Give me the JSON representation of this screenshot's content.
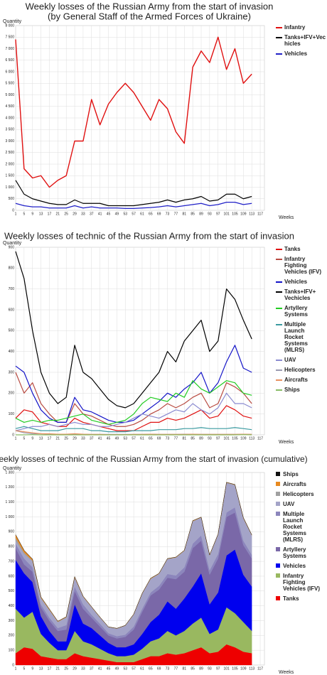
{
  "chart_data": [
    {
      "type": "line",
      "title": "Weekly losses of the Russian Army from the start of invasion",
      "subtitle": "(by General Staff of the Armed Forces of Ukraine)",
      "y_label": "Quantity",
      "x_label": "Weeks",
      "grid": true,
      "legend": "right",
      "x": [
        1,
        5,
        9,
        13,
        17,
        21,
        25,
        29,
        33,
        37,
        41,
        45,
        49,
        53,
        57,
        61,
        65,
        69,
        73,
        77,
        81,
        85,
        89,
        93,
        97,
        101,
        105,
        109,
        113
      ],
      "xlim": [
        1,
        119
      ],
      "xticks": [
        1,
        5,
        9,
        13,
        17,
        21,
        25,
        29,
        33,
        37,
        41,
        45,
        49,
        53,
        57,
        61,
        65,
        69,
        73,
        77,
        81,
        85,
        89,
        93,
        97,
        101,
        105,
        109,
        113,
        117
      ],
      "ylim": [
        0,
        8000
      ],
      "yticks": [
        0,
        500,
        {
          "value": 1000,
          "label": "1 000"
        },
        {
          "value": 1500,
          "label": "1 500"
        },
        {
          "value": 2000,
          "label": "2 000"
        },
        {
          "value": 2500,
          "label": "2 500"
        },
        {
          "value": 3000,
          "label": "3 000"
        },
        {
          "value": 3500,
          "label": "3 500"
        },
        {
          "value": 4000,
          "label": "4 000"
        },
        {
          "value": 4500,
          "label": "4 500"
        },
        {
          "value": 5000,
          "label": "5 000"
        },
        {
          "value": 5500,
          "label": "5 500"
        },
        {
          "value": 6000,
          "label": "6 000"
        },
        {
          "value": 6500,
          "label": "6 500"
        },
        {
          "value": 7000,
          "label": "7 000"
        },
        {
          "value": 7500,
          "label": "7 500"
        },
        {
          "value": 8000,
          "label": "8 000"
        }
      ],
      "series": [
        {
          "name": "Infantry",
          "color": "#e01010",
          "values": [
            7400,
            1800,
            1400,
            1500,
            1000,
            1300,
            1500,
            3000,
            3000,
            4800,
            3700,
            4600,
            5100,
            5500,
            5100,
            4500,
            3900,
            4800,
            4400,
            3400,
            2900,
            6200,
            6900,
            6400,
            7500,
            6100,
            7000,
            5500,
            5900
          ]
        },
        {
          "name": "Tanks+IFV+Vec hicles",
          "color": "#000000",
          "values": [
            1300,
            700,
            500,
            400,
            300,
            250,
            250,
            450,
            300,
            300,
            300,
            200,
            200,
            200,
            200,
            250,
            300,
            350,
            450,
            350,
            450,
            500,
            600,
            400,
            450,
            700,
            700,
            500,
            600
          ]
        },
        {
          "name": "Vehicles",
          "color": "#2020c8",
          "values": [
            300,
            200,
            150,
            150,
            100,
            100,
            100,
            200,
            100,
            150,
            100,
            100,
            100,
            80,
            80,
            100,
            120,
            150,
            200,
            150,
            200,
            250,
            300,
            200,
            250,
            350,
            350,
            250,
            300
          ]
        }
      ]
    },
    {
      "type": "line",
      "title": "Weekly losses of technic of the Russian Army from the start of invasion",
      "y_label": "Quantity",
      "x_label": "Weeks",
      "grid": true,
      "legend": "right",
      "x": [
        1,
        5,
        9,
        13,
        17,
        21,
        25,
        29,
        33,
        37,
        41,
        45,
        49,
        53,
        57,
        61,
        65,
        69,
        73,
        77,
        81,
        85,
        89,
        93,
        97,
        101,
        105,
        109,
        113
      ],
      "xlim": [
        1,
        119
      ],
      "xticks": [
        1,
        5,
        9,
        13,
        17,
        21,
        25,
        29,
        33,
        37,
        41,
        45,
        49,
        53,
        57,
        61,
        65,
        69,
        73,
        77,
        81,
        85,
        89,
        93,
        97,
        101,
        105,
        109,
        113,
        117
      ],
      "ylim": [
        0,
        900
      ],
      "yticks": [
        0,
        100,
        200,
        300,
        400,
        500,
        600,
        700,
        800,
        900
      ],
      "series": [
        {
          "name": "Tanks",
          "color": "#e01010",
          "values": [
            80,
            120,
            110,
            60,
            50,
            40,
            40,
            80,
            60,
            50,
            40,
            30,
            20,
            20,
            20,
            40,
            60,
            60,
            80,
            70,
            80,
            100,
            120,
            80,
            90,
            140,
            120,
            90,
            80
          ]
        },
        {
          "name": "Infantry Fighting Vehicles (IFV)",
          "color": "#b84a40",
          "values": [
            300,
            200,
            250,
            150,
            100,
            60,
            60,
            150,
            100,
            90,
            70,
            50,
            40,
            40,
            50,
            70,
            100,
            120,
            150,
            130,
            150,
            180,
            200,
            130,
            150,
            250,
            230,
            200,
            150
          ]
        },
        {
          "name": "Vehicles",
          "color": "#1414c8",
          "values": [
            330,
            300,
            200,
            120,
            80,
            60,
            60,
            180,
            120,
            110,
            90,
            70,
            60,
            60,
            70,
            100,
            130,
            160,
            200,
            180,
            220,
            250,
            300,
            200,
            250,
            350,
            430,
            320,
            300
          ]
        },
        {
          "name": "Tanks+IFV+ Vechicles",
          "color": "#000000",
          "values": [
            880,
            750,
            500,
            300,
            200,
            150,
            180,
            430,
            300,
            270,
            220,
            170,
            140,
            130,
            150,
            200,
            250,
            300,
            400,
            350,
            450,
            500,
            550,
            400,
            450,
            700,
            650,
            550,
            460
          ]
        },
        {
          "name": "Artyllery Systems",
          "color": "#22cc22",
          "values": [
            80,
            60,
            70,
            60,
            70,
            70,
            80,
            90,
            100,
            70,
            60,
            50,
            60,
            70,
            100,
            150,
            180,
            170,
            160,
            200,
            180,
            260,
            220,
            200,
            230,
            260,
            250,
            200,
            190
          ]
        },
        {
          "name": "Multiple Launch Rocket Systems (MLRS)",
          "color": "#3a9aa0",
          "values": [
            30,
            40,
            30,
            20,
            20,
            20,
            30,
            30,
            30,
            20,
            20,
            15,
            15,
            15,
            20,
            20,
            20,
            25,
            25,
            25,
            30,
            30,
            35,
            30,
            30,
            30,
            35,
            30,
            25
          ]
        },
        {
          "name": "UAV",
          "color": "#8a8ad0",
          "values": [
            20,
            30,
            40,
            40,
            50,
            40,
            50,
            60,
            50,
            50,
            40,
            40,
            50,
            60,
            80,
            100,
            90,
            80,
            100,
            120,
            110,
            150,
            120,
            100,
            130,
            200,
            150,
            150,
            130
          ]
        },
        {
          "name": "Helicopters",
          "color": "#9a9ab0",
          "values": [
            20,
            10,
            5,
            5,
            3,
            3,
            3,
            2,
            2,
            2,
            2,
            2,
            2,
            2,
            2,
            2,
            3,
            2,
            2,
            2,
            3,
            2,
            2,
            2,
            2,
            2,
            2,
            2,
            2
          ]
        },
        {
          "name": "Aircrafts",
          "color": "#e89060",
          "values": [
            20,
            15,
            10,
            5,
            5,
            3,
            3,
            5,
            3,
            2,
            2,
            1,
            1,
            1,
            2,
            2,
            3,
            2,
            2,
            2,
            2,
            3,
            2,
            2,
            2,
            2,
            2,
            3,
            2
          ]
        },
        {
          "name": "Ships",
          "color": "#88bb66",
          "values": [
            0,
            0,
            1,
            0,
            0,
            0,
            0,
            0,
            0,
            0,
            0,
            0,
            0,
            0,
            0,
            0,
            0,
            0,
            0,
            0,
            0,
            0,
            0,
            0,
            0,
            0,
            0,
            1,
            0
          ]
        }
      ]
    },
    {
      "type": "area",
      "title": "Weekly losses of technic of the Russian Army from the start of invasion (cumulative)",
      "y_label": "Quantity",
      "x_label": "Weeks",
      "grid": true,
      "legend": "right",
      "x": [
        1,
        5,
        9,
        13,
        17,
        21,
        25,
        29,
        33,
        37,
        41,
        45,
        49,
        53,
        57,
        61,
        65,
        69,
        73,
        77,
        81,
        85,
        89,
        93,
        97,
        101,
        105,
        109,
        113
      ],
      "xlim": [
        1,
        119
      ],
      "xticks": [
        1,
        5,
        9,
        13,
        17,
        21,
        25,
        29,
        33,
        37,
        41,
        45,
        49,
        53,
        57,
        61,
        65,
        69,
        73,
        77,
        81,
        85,
        89,
        93,
        97,
        101,
        105,
        109,
        113,
        117
      ],
      "ylim": [
        0,
        1300
      ],
      "yticks": [
        0,
        100,
        200,
        300,
        400,
        500,
        600,
        700,
        800,
        900,
        {
          "value": 1000,
          "label": "1 000"
        },
        {
          "value": 1100,
          "label": "1 100"
        },
        {
          "value": 1200,
          "label": "1 200"
        },
        {
          "value": 1300,
          "label": "1 300"
        }
      ],
      "series": [
        {
          "name": "Tanks",
          "color": "#ee0000",
          "values": [
            80,
            120,
            110,
            60,
            50,
            40,
            40,
            80,
            60,
            50,
            40,
            30,
            20,
            20,
            20,
            40,
            60,
            60,
            80,
            70,
            80,
            100,
            120,
            80,
            90,
            140,
            120,
            90,
            80
          ]
        },
        {
          "name": "Infantry Fighting Vehicles (IFV)",
          "color": "#99b860",
          "values": [
            300,
            200,
            250,
            150,
            100,
            60,
            60,
            150,
            100,
            90,
            70,
            50,
            40,
            40,
            50,
            70,
            100,
            120,
            150,
            130,
            150,
            180,
            200,
            130,
            150,
            250,
            230,
            200,
            150
          ]
        },
        {
          "name": "Vehicles",
          "color": "#0000ee",
          "values": [
            330,
            300,
            200,
            120,
            80,
            60,
            60,
            180,
            120,
            110,
            90,
            70,
            60,
            60,
            70,
            100,
            130,
            160,
            200,
            180,
            220,
            250,
            300,
            200,
            250,
            350,
            430,
            320,
            300
          ]
        },
        {
          "name": "Artyllery Systems",
          "color": "#7a68a8",
          "values": [
            80,
            60,
            70,
            60,
            70,
            70,
            80,
            90,
            100,
            70,
            60,
            50,
            60,
            70,
            100,
            150,
            180,
            170,
            160,
            200,
            180,
            260,
            220,
            200,
            230,
            260,
            250,
            200,
            190
          ]
        },
        {
          "name": "Multiple Launch Rocket Systems (MLRS)",
          "color": "#8c86bc",
          "values": [
            30,
            40,
            30,
            20,
            20,
            20,
            30,
            30,
            30,
            20,
            20,
            15,
            15,
            15,
            20,
            20,
            20,
            25,
            25,
            25,
            30,
            30,
            35,
            30,
            30,
            30,
            35,
            30,
            25
          ]
        },
        {
          "name": "UAV",
          "color": "#a4a4c8",
          "values": [
            20,
            30,
            40,
            40,
            50,
            40,
            50,
            60,
            50,
            50,
            40,
            40,
            50,
            60,
            80,
            100,
            90,
            80,
            100,
            120,
            110,
            150,
            120,
            100,
            130,
            200,
            150,
            150,
            130
          ]
        },
        {
          "name": "Helicopters",
          "color": "#a0a0a0",
          "values": [
            20,
            10,
            5,
            5,
            3,
            3,
            3,
            2,
            2,
            2,
            2,
            2,
            2,
            2,
            2,
            2,
            3,
            2,
            2,
            2,
            3,
            2,
            2,
            2,
            2,
            2,
            2,
            2,
            2
          ]
        },
        {
          "name": "Aircrafts",
          "color": "#e88a20",
          "values": [
            20,
            15,
            10,
            5,
            5,
            3,
            3,
            5,
            3,
            2,
            2,
            1,
            1,
            1,
            2,
            2,
            3,
            2,
            2,
            2,
            2,
            3,
            2,
            2,
            2,
            2,
            2,
            3,
            2
          ]
        },
        {
          "name": "Ships",
          "color": "#111111",
          "values": [
            0,
            0,
            1,
            0,
            0,
            0,
            0,
            0,
            0,
            0,
            0,
            0,
            0,
            0,
            0,
            0,
            0,
            0,
            0,
            0,
            0,
            0,
            0,
            0,
            0,
            0,
            0,
            1,
            0
          ]
        }
      ]
    }
  ]
}
